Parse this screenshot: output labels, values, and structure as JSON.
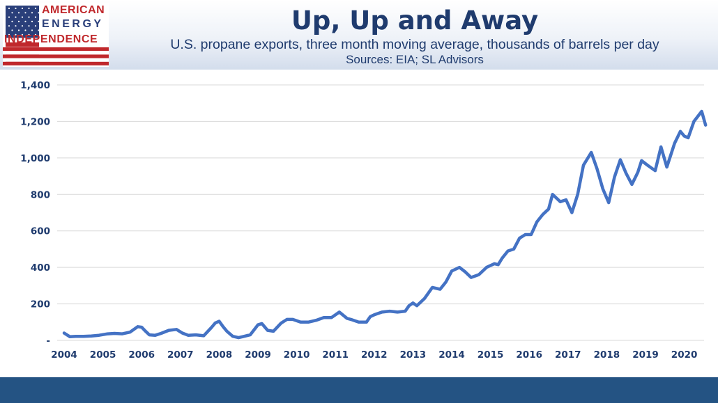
{
  "header": {
    "title": "Up, Up and Away",
    "subtitle": "U.S. propane exports, three month moving average, thousands of barrels per day",
    "source": "Sources: EIA; SL Advisors"
  },
  "logo": {
    "line1": "AMERICAN",
    "line2": "ENERGY",
    "line3": "INDEPENDENCE",
    "flag_icon": "us-flag-icon"
  },
  "colors": {
    "line": "#4472c4",
    "title": "#1f3b6e",
    "footer": "#245383"
  },
  "chart_data": {
    "type": "line",
    "title": "Up, Up and Away",
    "xlabel": "",
    "ylabel": "",
    "xlim": [
      2004,
      2020.6
    ],
    "ylim": [
      0,
      1400
    ],
    "yticks": [
      0,
      200,
      400,
      600,
      800,
      1000,
      1200,
      1400
    ],
    "ytick_labels": [
      "-",
      "200",
      "400",
      "600",
      "800",
      "1,000",
      "1,200",
      "1,400"
    ],
    "xticks": [
      2004,
      2005,
      2006,
      2007,
      2008,
      2009,
      2010,
      2011,
      2012,
      2013,
      2014,
      2015,
      2016,
      2017,
      2018,
      2019,
      2020
    ],
    "xtick_labels": [
      "2004",
      "2005",
      "2006",
      "2007",
      "2008",
      "2009",
      "2010",
      "2011",
      "2012",
      "2013",
      "2014",
      "2015",
      "2016",
      "2017",
      "2018",
      "2019",
      "2020"
    ],
    "grid": true,
    "legend": "none",
    "series": [
      {
        "x": [
          2004.0,
          2004.15,
          2004.3,
          2004.5,
          2004.7,
          2004.9,
          2005.1,
          2005.3,
          2005.5,
          2005.7,
          2005.9,
          2006.0,
          2006.1,
          2006.2,
          2006.35,
          2006.5,
          2006.7,
          2006.9,
          2007.05,
          2007.2,
          2007.4,
          2007.6,
          2007.8,
          2007.9,
          2008.0,
          2008.1,
          2008.2,
          2008.35,
          2008.5,
          2008.6,
          2008.7,
          2008.8,
          2009.0,
          2009.1,
          2009.25,
          2009.4,
          2009.6,
          2009.75,
          2009.9,
          2010.1,
          2010.3,
          2010.5,
          2010.7,
          2010.9,
          2011.1,
          2011.3,
          2011.4,
          2011.6,
          2011.8,
          2011.9,
          2012.0,
          2012.2,
          2012.4,
          2012.6,
          2012.8,
          2012.9,
          2013.0,
          2013.1,
          2013.3,
          2013.5,
          2013.7,
          2013.85,
          2014.0,
          2014.2,
          2014.35,
          2014.5,
          2014.7,
          2014.9,
          2015.1,
          2015.2,
          2015.3,
          2015.45,
          2015.6,
          2015.75,
          2015.9,
          2016.05,
          2016.2,
          2016.35,
          2016.5,
          2016.6,
          2016.8,
          2016.95,
          2017.1,
          2017.25,
          2017.4,
          2017.6,
          2017.75,
          2017.9,
          2018.05,
          2018.2,
          2018.35,
          2018.5,
          2018.65,
          2018.8,
          2018.9,
          2019.05,
          2019.25,
          2019.4,
          2019.55,
          2019.75,
          2019.9,
          2020.0,
          2020.1,
          2020.25,
          2020.45,
          2020.55
        ],
        "y": [
          40,
          20,
          22,
          22,
          24,
          28,
          35,
          38,
          36,
          45,
          75,
          72,
          50,
          30,
          28,
          38,
          55,
          60,
          40,
          28,
          30,
          25,
          70,
          95,
          105,
          75,
          50,
          22,
          15,
          20,
          25,
          30,
          85,
          92,
          55,
          50,
          95,
          115,
          115,
          100,
          100,
          110,
          125,
          125,
          155,
          120,
          115,
          100,
          100,
          130,
          140,
          155,
          160,
          155,
          160,
          190,
          205,
          190,
          230,
          290,
          280,
          320,
          380,
          400,
          375,
          345,
          360,
          400,
          420,
          415,
          450,
          490,
          500,
          560,
          580,
          580,
          650,
          690,
          720,
          800,
          760,
          770,
          700,
          800,
          960,
          1030,
          940,
          830,
          755,
          895,
          990,
          915,
          855,
          920,
          985,
          960,
          930,
          1060,
          950,
          1080,
          1145,
          1120,
          1110,
          1200,
          1255,
          1180
        ]
      }
    ]
  }
}
